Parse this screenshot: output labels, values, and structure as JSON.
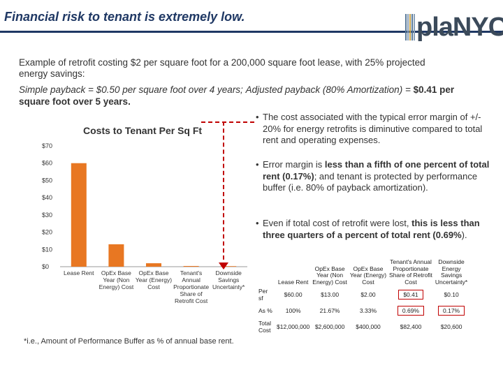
{
  "title": "Financial risk to tenant is extremely low.",
  "logo": {
    "text": "plaNYC",
    "bar_colors": [
      "#5a7a9a",
      "#8aa0b8",
      "#c6a24a",
      "#5a7a9a",
      "#8aa0b8"
    ]
  },
  "intro": "Example of retrofit costing $2 per square foot for a 200,000 square foot lease, with 25% projected energy savings:",
  "payback": {
    "simple": "Simple payback = $0.50 per square foot over 4 years;",
    "adjusted_prefix": "Adjusted payback (80% Amortization) =",
    "adjusted_value": "$0.41",
    "adjusted_suffix": "per square foot over 5 years."
  },
  "chart_data": {
    "type": "bar",
    "title": "Costs to Tenant Per Sq Ft",
    "categories": [
      "Lease Rent",
      "OpEx Base Year (Non Energy) Cost",
      "OpEx Base Year (Energy) Cost",
      "Tenant's Annual Proportionate Share of Retrofit Cost",
      "Downside Savings Uncertainty*"
    ],
    "category_lines": [
      [
        "Lease Rent"
      ],
      [
        "OpEx Base",
        "Year (Non",
        "Energy) Cost"
      ],
      [
        "OpEx Base",
        "Year (Energy)",
        "Cost"
      ],
      [
        "Tenant's",
        "Annual",
        "Proportionate",
        "Share of",
        "Retrofit Cost"
      ],
      [
        "Downside",
        "Savings",
        "Uncertainty*"
      ]
    ],
    "values": [
      60.0,
      13.0,
      2.0,
      0.41,
      0.1
    ],
    "ylim": [
      0,
      70
    ],
    "yticks": [
      0,
      10,
      20,
      30,
      40,
      50,
      60,
      70
    ],
    "ytick_labels": [
      "$0",
      "$10",
      "$20",
      "$30",
      "$40",
      "$50",
      "$60",
      "$70"
    ],
    "bar_color": "#e87722",
    "grid": false
  },
  "bullets": [
    {
      "dot": "•",
      "parts": [
        {
          "text": "The cost associated with the typical error margin of +/- 20% for energy retrofits is diminutive compared to total rent and operating expenses.",
          "bold": false
        }
      ]
    },
    {
      "dot": "•",
      "parts": [
        {
          "text": "Error margin is ",
          "bold": false
        },
        {
          "text": "less than a fifth of one percent of total rent (0.17%)",
          "bold": true
        },
        {
          "text": "; and tenant is protected by performance buffer (i.e. 80% of payback amortization).",
          "bold": false
        }
      ]
    },
    {
      "dot": "•",
      "parts": [
        {
          "text": "Even if total cost of retrofit were lost, ",
          "bold": false
        },
        {
          "text": "this is less than three quarters of a percent of total rent (0.69%",
          "bold": true
        },
        {
          "text": "). ",
          "bold": false
        }
      ]
    }
  ],
  "table": {
    "headers": [
      "",
      "Lease Rent",
      "OpEx Base Year (Non Energy) Cost",
      "OpEx Base Year (Energy) Cost",
      "Tenant's Annual Proportionate Share of Retrofit Cost",
      "Downside Energy Savings Uncertainty*"
    ],
    "header_lines": [
      [
        ""
      ],
      [
        "Lease Rent"
      ],
      [
        "OpEx Base",
        "Year (Non",
        "Energy) Cost"
      ],
      [
        "OpEx Base",
        "Year (Energy)",
        "Cost"
      ],
      [
        "Tenant's Annual",
        "Proportionate",
        "Share of Retrofit",
        "Cost"
      ],
      [
        "Downside",
        "Energy",
        "Savings",
        "Uncertainty*"
      ]
    ],
    "rows": [
      {
        "label": "Per sf",
        "cells": [
          "$60.00",
          "$13.00",
          "$2.00",
          "$0.41",
          "$0.10"
        ],
        "highlight": [
          false,
          false,
          false,
          true,
          false
        ]
      },
      {
        "label": "As %",
        "cells": [
          "100%",
          "21.67%",
          "3.33%",
          "0.69%",
          "0.17%"
        ],
        "highlight": [
          false,
          false,
          false,
          true,
          true
        ]
      },
      {
        "label": "Total Cost",
        "cells": [
          "$12,000,000",
          "$2,600,000",
          "$400,000",
          "$82,400",
          "$20,600"
        ],
        "highlight": [
          false,
          false,
          false,
          false,
          false
        ]
      }
    ]
  },
  "footnote": "*i.e., Amount of Performance Buffer as % of annual base rent."
}
